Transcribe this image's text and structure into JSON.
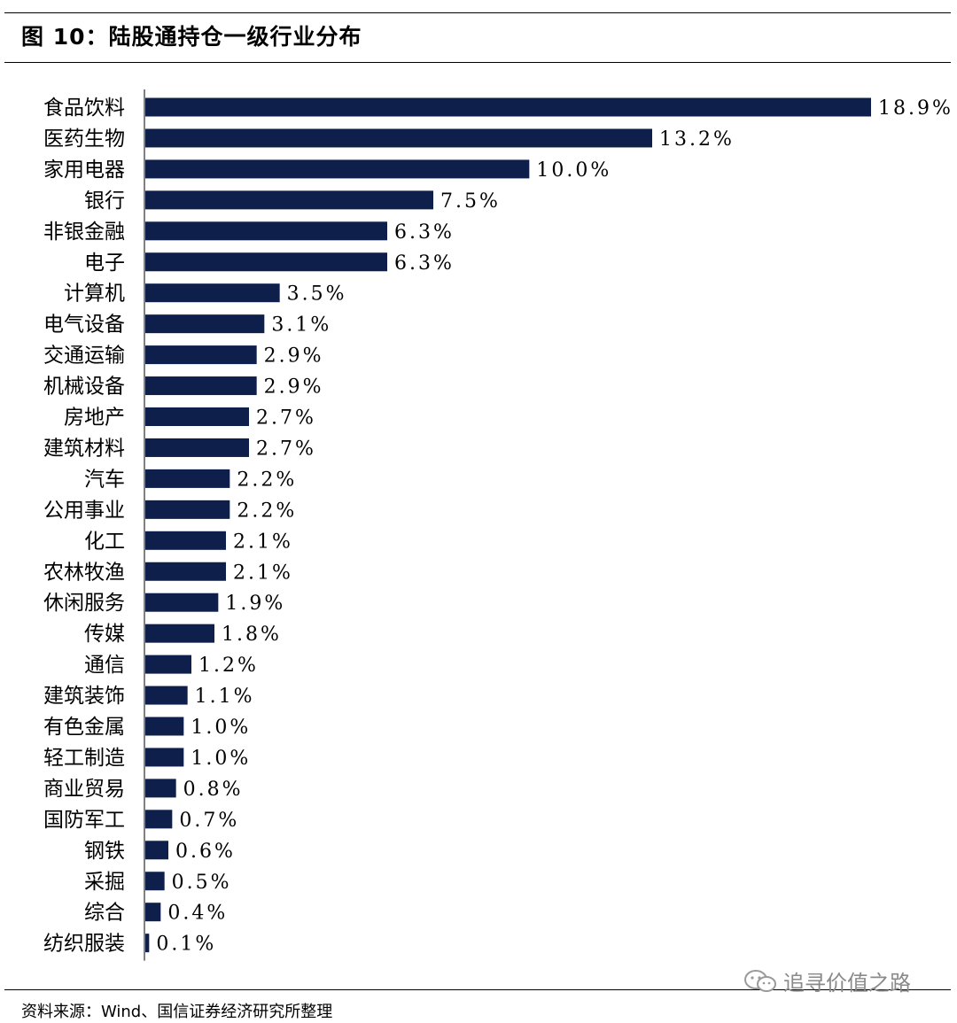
{
  "figure": {
    "title": "图 10：陆股通持仓一级行业分布",
    "source": "资料来源：Wind、国信证券经济研究所整理",
    "watermark": "追寻价值之路"
  },
  "colors": {
    "bar": "#0d1f4a"
  },
  "chart_data": {
    "type": "bar",
    "orientation": "horizontal",
    "categories": [
      "食品饮料",
      "医药生物",
      "家用电器",
      "银行",
      "非银金融",
      "电子",
      "计算机",
      "电气设备",
      "交通运输",
      "机械设备",
      "房地产",
      "建筑材料",
      "汽车",
      "公用事业",
      "化工",
      "农林牧渔",
      "休闲服务",
      "传媒",
      "通信",
      "建筑装饰",
      "有色金属",
      "轻工制造",
      "商业贸易",
      "国防军工",
      "钢铁",
      "采掘",
      "综合",
      "纺织服装"
    ],
    "values": [
      18.9,
      13.2,
      10.0,
      7.5,
      6.3,
      6.3,
      3.5,
      3.1,
      2.9,
      2.9,
      2.7,
      2.7,
      2.2,
      2.2,
      2.1,
      2.1,
      1.9,
      1.8,
      1.2,
      1.1,
      1.0,
      1.0,
      0.8,
      0.7,
      0.6,
      0.5,
      0.4,
      0.1
    ],
    "value_labels": [
      "18.9%",
      "13.2%",
      "10.0%",
      "7.5%",
      "6.3%",
      "6.3%",
      "3.5%",
      "3.1%",
      "2.9%",
      "2.9%",
      "2.7%",
      "2.7%",
      "2.2%",
      "2.2%",
      "2.1%",
      "2.1%",
      "1.9%",
      "1.8%",
      "1.2%",
      "1.1%",
      "1.0%",
      "1.0%",
      "0.8%",
      "0.7%",
      "0.6%",
      "0.5%",
      "0.4%",
      "0.1%"
    ],
    "unit": "%",
    "grid": false,
    "legend": "none"
  }
}
